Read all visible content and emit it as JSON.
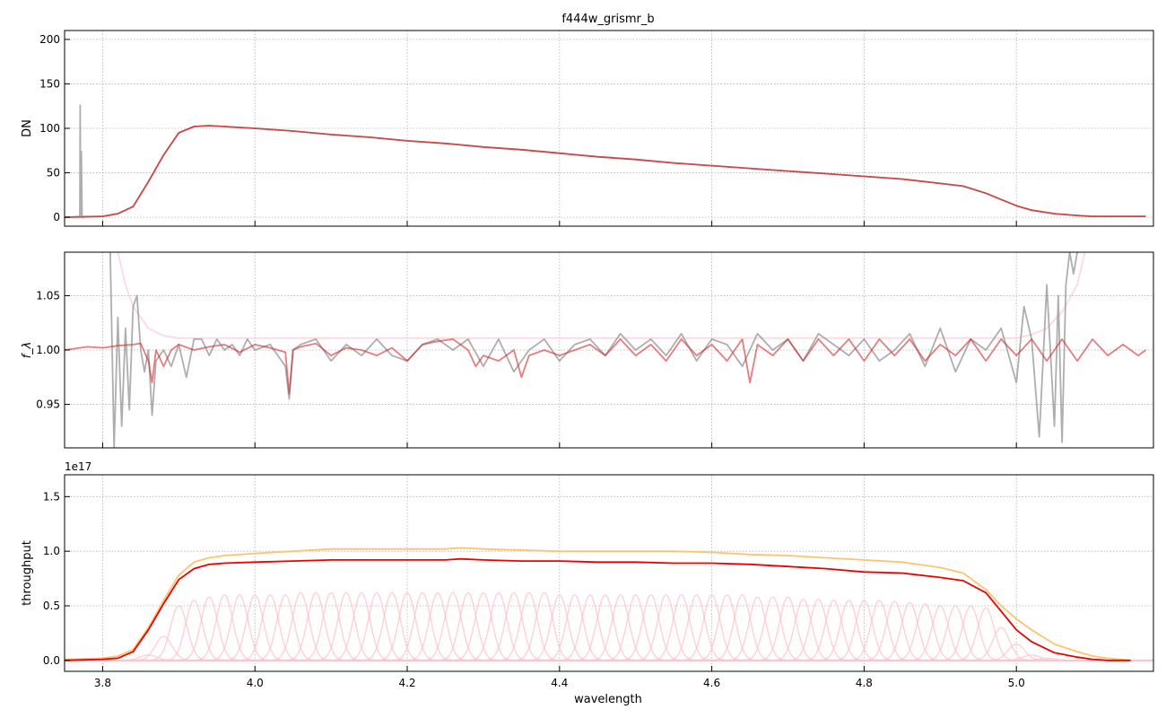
{
  "figure": {
    "title": "f444w_grismr_b",
    "xlabel": "wavelength"
  },
  "chart_data": [
    {
      "type": "line",
      "panel": "top",
      "title": "f444w_grismr_b",
      "xlabel": "",
      "ylabel": "DN",
      "xlim": [
        3.75,
        5.18
      ],
      "ylim": [
        -10,
        210
      ],
      "xticks": [
        3.8,
        4.0,
        4.2,
        4.4,
        4.6,
        4.8,
        5.0
      ],
      "xtick_labels": [],
      "yticks": [
        0,
        50,
        100,
        150,
        200
      ],
      "ytick_labels": [
        "0",
        "50",
        "100",
        "150",
        "200"
      ],
      "grid": true,
      "series": [
        {
          "color": "#8c8c8c",
          "opacity": 0.7,
          "x": [
            3.75,
            3.77,
            3.7705,
            3.771,
            3.772,
            3.773,
            3.774,
            3.775,
            3.8,
            3.82,
            3.84,
            3.86,
            3.88,
            3.9,
            3.92,
            3.94,
            3.96,
            4.0,
            4.05,
            4.1,
            4.15,
            4.2,
            4.25,
            4.3,
            4.35,
            4.4,
            4.45,
            4.5,
            4.55,
            4.6,
            4.65,
            4.7,
            4.75,
            4.8,
            4.85,
            4.9,
            4.93,
            4.96,
            4.98,
            5.0,
            5.02,
            5.05,
            5.08,
            5.1,
            5.12,
            5.14,
            5.17
          ],
          "y": [
            0,
            1,
            126,
            2,
            74,
            1,
            0,
            1,
            1,
            4,
            12,
            40,
            70,
            95,
            102,
            103,
            102,
            100,
            97,
            93,
            90,
            86,
            83,
            79,
            76,
            72,
            68,
            65,
            61,
            58,
            55,
            52,
            49,
            46,
            43,
            38,
            35,
            27,
            20,
            13,
            8,
            4,
            2,
            1,
            1,
            1,
            1
          ]
        },
        {
          "color": "#d62728",
          "opacity": 0.75,
          "x": [
            3.75,
            3.78,
            3.8,
            3.82,
            3.84,
            3.86,
            3.88,
            3.9,
            3.92,
            3.94,
            3.96,
            4.0,
            4.05,
            4.1,
            4.15,
            4.2,
            4.25,
            4.3,
            4.35,
            4.4,
            4.45,
            4.5,
            4.55,
            4.6,
            4.65,
            4.7,
            4.75,
            4.8,
            4.85,
            4.9,
            4.93,
            4.96,
            4.98,
            5.0,
            5.02,
            5.05,
            5.08,
            5.1,
            5.12,
            5.14,
            5.17
          ],
          "y": [
            0,
            0.5,
            1,
            4,
            12,
            40,
            70,
            95,
            102,
            103,
            102,
            100,
            97,
            93,
            90,
            86,
            83,
            79,
            76,
            72,
            68,
            65,
            61,
            58,
            55,
            52,
            49,
            46,
            43,
            38,
            35,
            27,
            20,
            13,
            8,
            4,
            2,
            1,
            1,
            1,
            1
          ]
        }
      ]
    },
    {
      "type": "line",
      "panel": "middle",
      "xlabel": "",
      "ylabel": "f_λ",
      "xlim": [
        3.75,
        5.18
      ],
      "ylim": [
        0.91,
        1.09
      ],
      "xticks": [
        3.8,
        4.0,
        4.2,
        4.4,
        4.6,
        4.8,
        5.0
      ],
      "xtick_labels": [],
      "yticks": [
        0.95,
        1.0,
        1.05
      ],
      "ytick_labels": [
        "0.95",
        "1.00",
        "1.05"
      ],
      "grid": true,
      "series": [
        {
          "color": "#ffc0cb",
          "opacity": 0.6,
          "x": [
            3.82,
            3.83,
            3.84,
            3.86,
            3.88,
            3.9,
            4.0,
            4.5,
            5.0,
            5.02,
            5.04,
            5.06,
            5.08,
            5.09
          ],
          "y": [
            1.09,
            1.06,
            1.04,
            1.02,
            1.013,
            1.011,
            1.011,
            1.011,
            1.011,
            1.014,
            1.02,
            1.035,
            1.06,
            1.09
          ]
        },
        {
          "color": "#8c8c8c",
          "opacity": 0.7,
          "x": [
            3.81,
            3.815,
            3.82,
            3.825,
            3.83,
            3.835,
            3.84,
            3.845,
            3.85,
            3.855,
            3.86,
            3.865,
            3.87,
            3.88,
            3.89,
            3.9,
            3.91,
            3.92,
            3.93,
            3.94,
            3.95,
            3.96,
            3.97,
            3.98,
            3.99,
            4.0,
            4.02,
            4.04,
            4.045,
            4.05,
            4.06,
            4.08,
            4.1,
            4.12,
            4.14,
            4.16,
            4.18,
            4.2,
            4.22,
            4.24,
            4.26,
            4.28,
            4.3,
            4.32,
            4.34,
            4.36,
            4.38,
            4.4,
            4.42,
            4.44,
            4.46,
            4.48,
            4.5,
            4.52,
            4.54,
            4.56,
            4.58,
            4.6,
            4.62,
            4.64,
            4.66,
            4.68,
            4.7,
            4.72,
            4.74,
            4.76,
            4.78,
            4.8,
            4.82,
            4.84,
            4.86,
            4.88,
            4.9,
            4.92,
            4.94,
            4.96,
            4.98,
            5.0,
            5.01,
            5.02,
            5.03,
            5.04,
            5.05,
            5.055,
            5.06,
            5.065,
            5.07,
            5.075,
            5.08
          ],
          "y": [
            1.09,
            0.91,
            1.03,
            0.93,
            1.02,
            0.945,
            1.04,
            1.05,
            1.0,
            0.98,
            1.0,
            0.94,
            0.99,
            1.0,
            0.985,
            1.005,
            0.975,
            1.01,
            1.01,
            0.995,
            1.01,
            1.0,
            1.005,
            0.995,
            1.01,
            1.0,
            1.005,
            0.985,
            0.955,
            1.0,
            1.005,
            1.01,
            0.99,
            1.005,
            0.995,
            1.01,
            0.995,
            0.99,
            1.005,
            1.01,
            1.0,
            1.01,
            0.985,
            1.01,
            0.98,
            1.0,
            1.01,
            0.99,
            1.005,
            1.01,
            0.995,
            1.015,
            1.0,
            1.01,
            0.995,
            1.015,
            0.99,
            1.01,
            1.005,
            0.985,
            1.015,
            1.0,
            1.01,
            0.99,
            1.015,
            1.005,
            0.995,
            1.01,
            0.99,
            1.0,
            1.015,
            0.985,
            1.02,
            0.98,
            1.01,
            1.0,
            1.02,
            0.97,
            1.04,
            1.01,
            0.92,
            1.06,
            0.93,
            1.05,
            0.915,
            1.06,
            1.09,
            1.07,
            1.09
          ]
        },
        {
          "color": "#d62728",
          "opacity": 0.6,
          "x": [
            3.75,
            3.78,
            3.8,
            3.82,
            3.84,
            3.85,
            3.86,
            3.865,
            3.87,
            3.88,
            3.89,
            3.9,
            3.92,
            3.94,
            3.96,
            3.98,
            4.0,
            4.02,
            4.04,
            4.045,
            4.05,
            4.06,
            4.08,
            4.1,
            4.12,
            4.14,
            4.16,
            4.18,
            4.2,
            4.22,
            4.24,
            4.26,
            4.28,
            4.29,
            4.3,
            4.32,
            4.34,
            4.35,
            4.36,
            4.38,
            4.4,
            4.42,
            4.44,
            4.46,
            4.48,
            4.5,
            4.52,
            4.54,
            4.56,
            4.58,
            4.6,
            4.62,
            4.64,
            4.65,
            4.66,
            4.68,
            4.7,
            4.72,
            4.74,
            4.76,
            4.78,
            4.8,
            4.82,
            4.84,
            4.86,
            4.88,
            4.9,
            4.92,
            4.94,
            4.96,
            4.98,
            5.0,
            5.02,
            5.04,
            5.06,
            5.08,
            5.1,
            5.12,
            5.14,
            5.16,
            5.17
          ],
          "y": [
            1.0,
            1.003,
            1.002,
            1.004,
            1.005,
            1.006,
            0.99,
            0.97,
            1.0,
            0.985,
            1.0,
            1.005,
            1.0,
            1.003,
            1.005,
            0.998,
            1.005,
            1.002,
            0.998,
            0.96,
            1.0,
            1.003,
            1.006,
            0.995,
            1.002,
            1.0,
            0.995,
            1.002,
            0.99,
            1.005,
            1.008,
            1.01,
            1.0,
            0.985,
            0.995,
            0.99,
            1.0,
            0.975,
            0.995,
            1.0,
            0.995,
            1.0,
            1.005,
            0.995,
            1.01,
            0.995,
            1.005,
            0.99,
            1.01,
            0.995,
            1.005,
            0.99,
            1.01,
            0.97,
            1.005,
            0.995,
            1.01,
            0.99,
            1.01,
            0.995,
            1.01,
            0.99,
            1.01,
            0.995,
            1.01,
            0.99,
            1.005,
            0.995,
            1.01,
            0.99,
            1.01,
            0.995,
            1.01,
            0.99,
            1.01,
            0.99,
            1.01,
            0.995,
            1.005,
            0.995,
            1.0
          ]
        }
      ]
    },
    {
      "type": "line",
      "panel": "bottom",
      "xlabel": "wavelength",
      "ylabel": "throughput",
      "offset_label": "1e17",
      "xlim": [
        3.75,
        5.18
      ],
      "ylim": [
        -0.1,
        1.7
      ],
      "xticks": [
        3.8,
        4.0,
        4.2,
        4.4,
        4.6,
        4.8,
        5.0
      ],
      "xtick_labels": [
        "3.8",
        "4.0",
        "4.2",
        "4.4",
        "4.6",
        "4.8",
        "5.0"
      ],
      "yticks": [
        0.0,
        0.5,
        1.0,
        1.5
      ],
      "ytick_labels": [
        "0.0",
        "0.5",
        "1.0",
        "1.5"
      ],
      "grid": true,
      "bands": {
        "color": "#ffc0cb",
        "sigma": 0.011,
        "centers": [
          3.86,
          3.88,
          3.9,
          3.92,
          3.94,
          3.96,
          3.98,
          4.0,
          4.02,
          4.04,
          4.06,
          4.08,
          4.1,
          4.12,
          4.14,
          4.16,
          4.18,
          4.2,
          4.22,
          4.24,
          4.26,
          4.28,
          4.3,
          4.32,
          4.34,
          4.36,
          4.38,
          4.4,
          4.42,
          4.44,
          4.46,
          4.48,
          4.5,
          4.52,
          4.54,
          4.56,
          4.58,
          4.6,
          4.62,
          4.64,
          4.66,
          4.68,
          4.7,
          4.72,
          4.74,
          4.76,
          4.78,
          4.8,
          4.82,
          4.84,
          4.86,
          4.88,
          4.9,
          4.92,
          4.94,
          4.96,
          4.98,
          5.0,
          5.02,
          5.04
        ],
        "peaks": [
          0.05,
          0.22,
          0.5,
          0.55,
          0.58,
          0.6,
          0.6,
          0.6,
          0.6,
          0.6,
          0.62,
          0.62,
          0.62,
          0.62,
          0.62,
          0.62,
          0.62,
          0.62,
          0.62,
          0.62,
          0.62,
          0.62,
          0.62,
          0.62,
          0.62,
          0.62,
          0.62,
          0.6,
          0.6,
          0.6,
          0.6,
          0.6,
          0.6,
          0.6,
          0.6,
          0.6,
          0.6,
          0.6,
          0.6,
          0.6,
          0.58,
          0.58,
          0.58,
          0.56,
          0.56,
          0.55,
          0.55,
          0.55,
          0.55,
          0.54,
          0.53,
          0.52,
          0.5,
          0.5,
          0.5,
          0.48,
          0.3,
          0.15,
          0.05,
          0.02
        ]
      },
      "series": [
        {
          "color": "#fdc46c",
          "x": [
            3.75,
            3.8,
            3.82,
            3.84,
            3.86,
            3.88,
            3.9,
            3.92,
            3.94,
            3.96,
            4.0,
            4.05,
            4.1,
            4.15,
            4.2,
            4.25,
            4.27,
            4.3,
            4.35,
            4.4,
            4.45,
            4.5,
            4.55,
            4.6,
            4.65,
            4.7,
            4.75,
            4.8,
            4.85,
            4.9,
            4.93,
            4.96,
            4.98,
            5.0,
            5.02,
            5.05,
            5.08,
            5.1,
            5.12,
            5.15
          ],
          "y": [
            0.01,
            0.02,
            0.04,
            0.1,
            0.3,
            0.55,
            0.78,
            0.9,
            0.94,
            0.96,
            0.98,
            1.0,
            1.02,
            1.02,
            1.02,
            1.02,
            1.03,
            1.02,
            1.01,
            1.0,
            1.0,
            1.0,
            1.0,
            0.99,
            0.97,
            0.96,
            0.94,
            0.92,
            0.9,
            0.85,
            0.8,
            0.65,
            0.5,
            0.38,
            0.28,
            0.15,
            0.08,
            0.04,
            0.02,
            0.0
          ]
        },
        {
          "color": "#ee0000",
          "x": [
            3.75,
            3.8,
            3.82,
            3.84,
            3.86,
            3.88,
            3.9,
            3.92,
            3.94,
            3.96,
            4.0,
            4.05,
            4.1,
            4.15,
            4.2,
            4.25,
            4.27,
            4.3,
            4.35,
            4.4,
            4.45,
            4.5,
            4.55,
            4.6,
            4.65,
            4.7,
            4.75,
            4.8,
            4.85,
            4.9,
            4.93,
            4.96,
            4.98,
            5.0,
            5.02,
            5.05,
            5.08,
            5.1,
            5.12,
            5.15
          ],
          "y": [
            0.0,
            0.01,
            0.02,
            0.08,
            0.28,
            0.52,
            0.74,
            0.84,
            0.88,
            0.89,
            0.9,
            0.91,
            0.92,
            0.92,
            0.92,
            0.92,
            0.93,
            0.92,
            0.91,
            0.91,
            0.9,
            0.9,
            0.89,
            0.89,
            0.88,
            0.86,
            0.84,
            0.81,
            0.8,
            0.76,
            0.73,
            0.62,
            0.45,
            0.28,
            0.17,
            0.07,
            0.03,
            0.01,
            0.0,
            0.0
          ]
        }
      ]
    }
  ]
}
